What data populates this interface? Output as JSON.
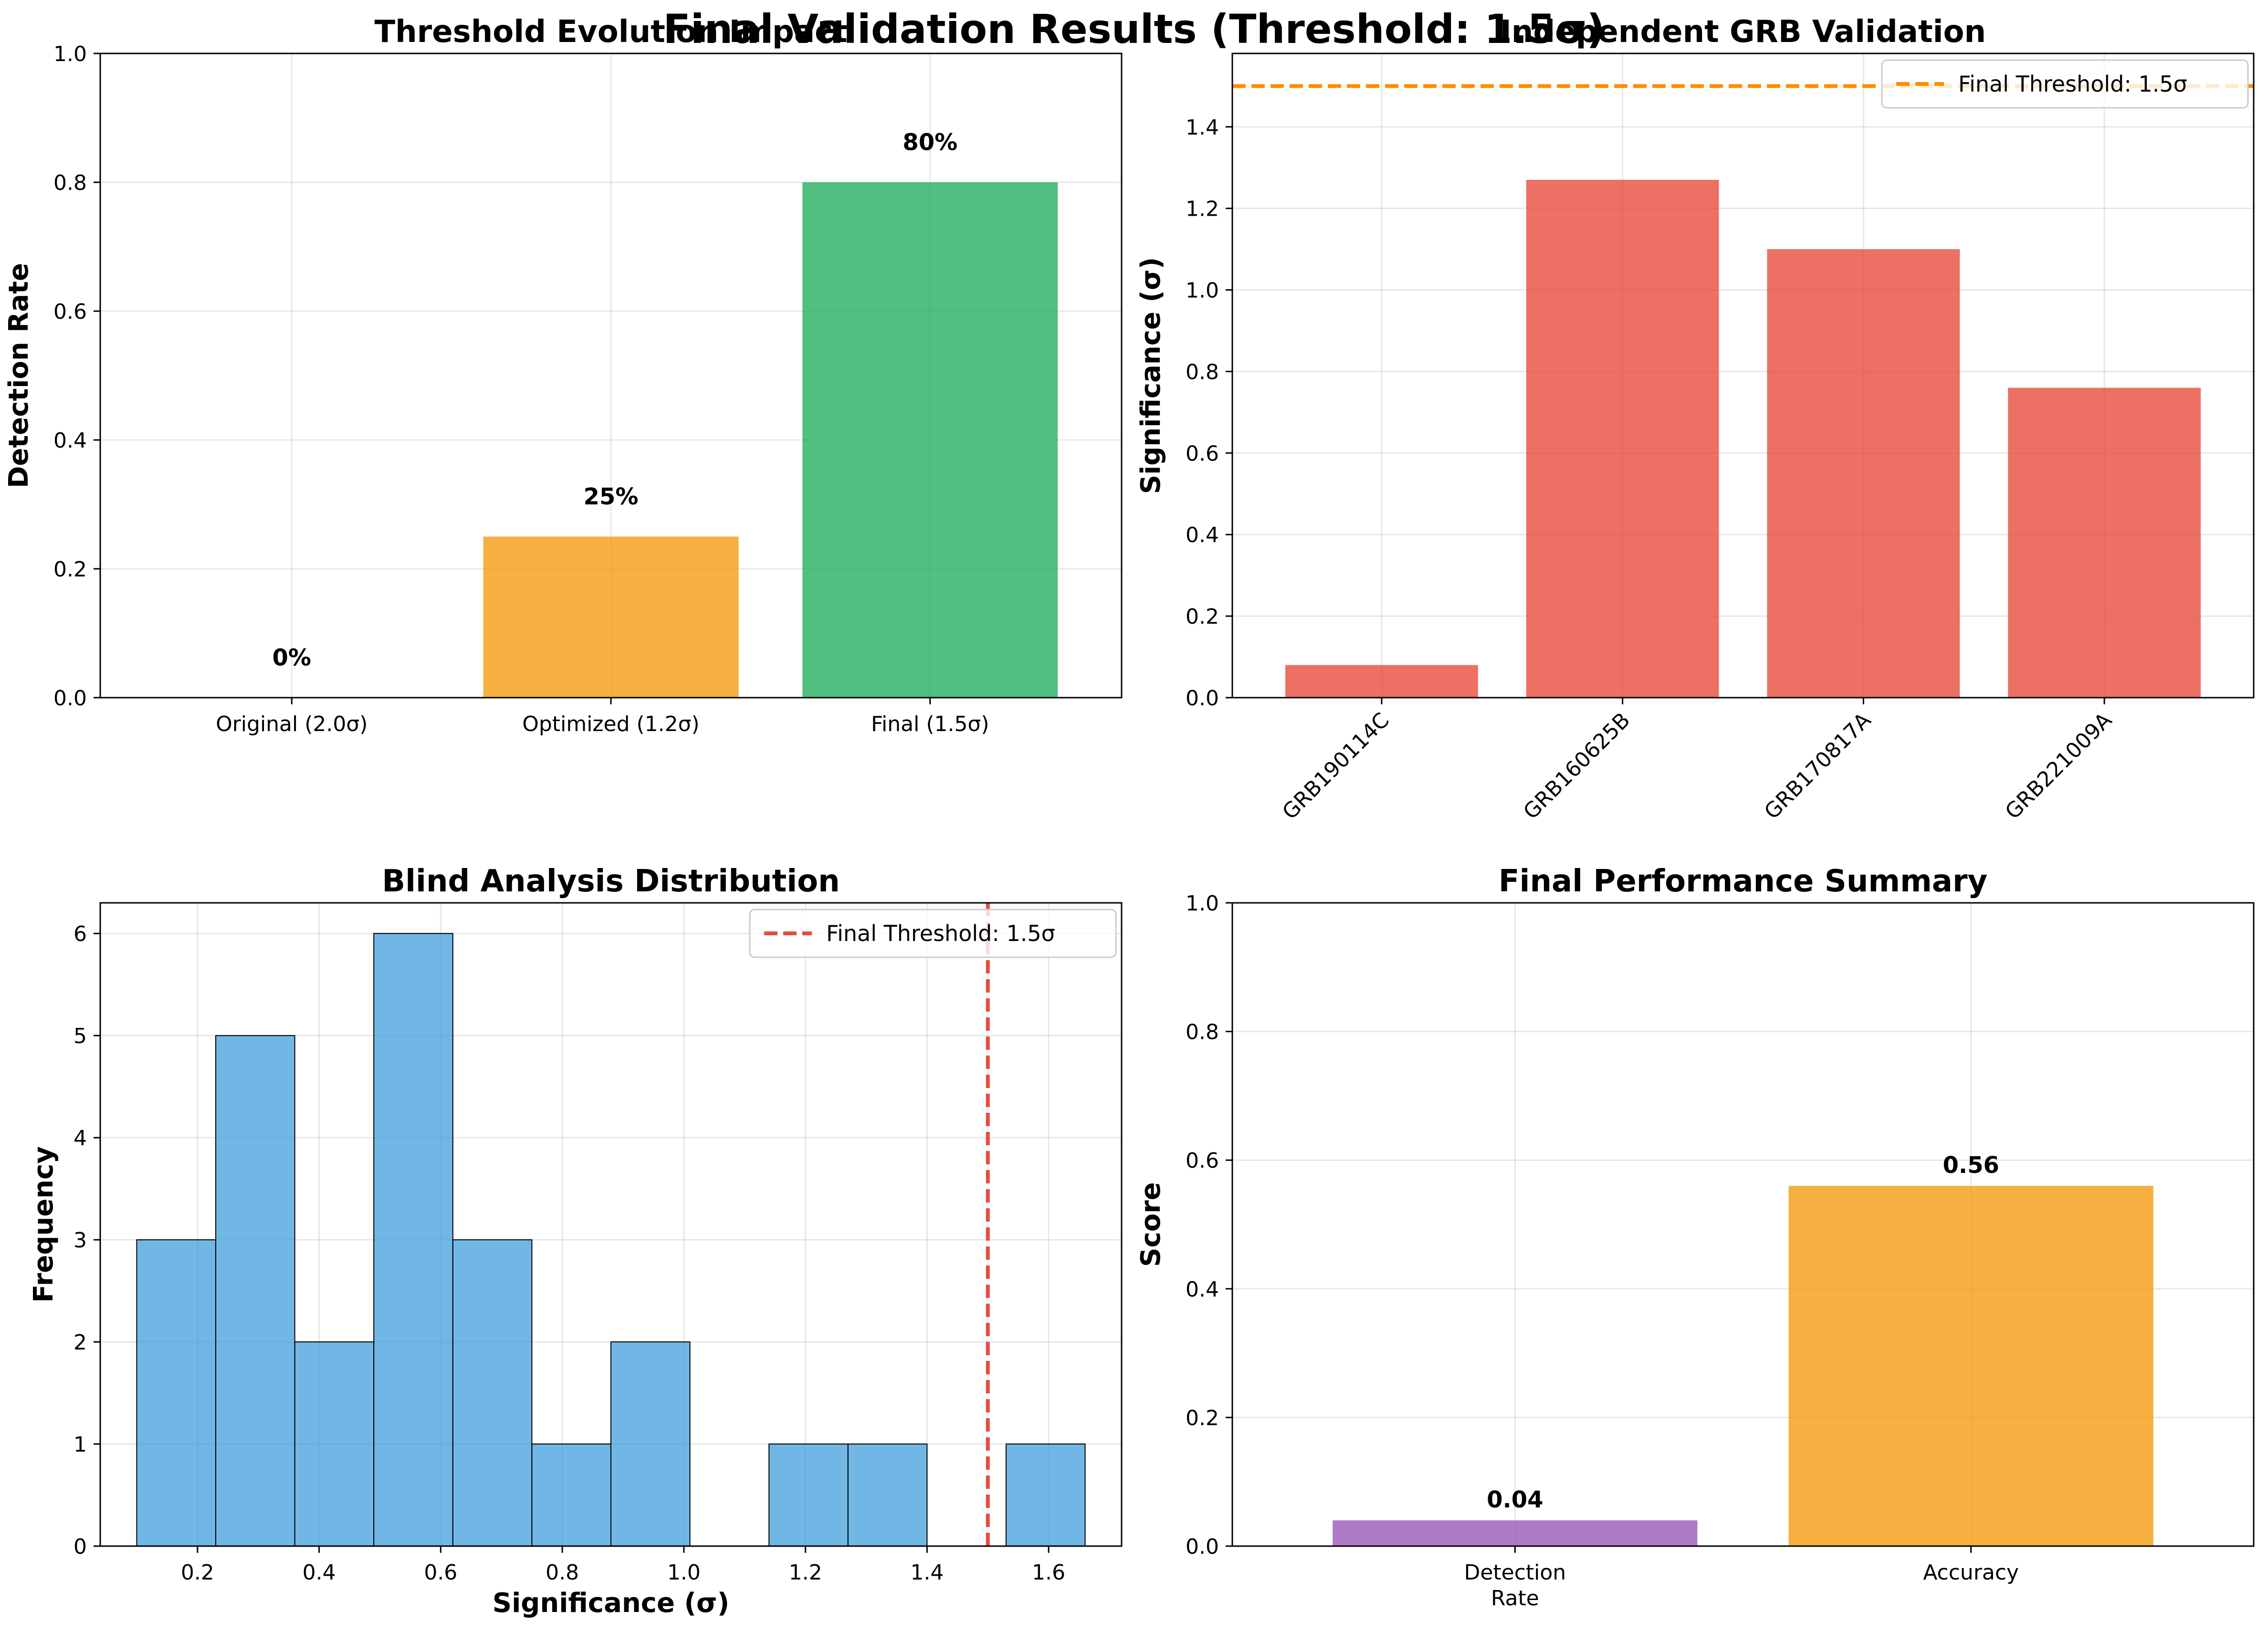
{
  "figure": {
    "title": "Final Validation Results (Threshold: 1.5σ)"
  },
  "colors": {
    "red": "#e74c3c",
    "orange": "#f39c12",
    "green": "#27ae60",
    "purple": "#9b59b6",
    "blue": "#3498db",
    "threshold_orange": "#ff8c00"
  },
  "chart_data": [
    {
      "type": "bar",
      "title": "Threshold Evolution Impact",
      "xlabel": "",
      "ylabel": "Detection Rate",
      "categories": [
        "Original (2.0σ)",
        "Optimized (1.2σ)",
        "Final (1.5σ)"
      ],
      "values": [
        0.0,
        0.25,
        0.8
      ],
      "data_labels": [
        "0%",
        "25%",
        "80%"
      ],
      "colors": [
        "#e74c3c",
        "#f39c12",
        "#27ae60"
      ],
      "ylim": [
        0,
        1.0
      ],
      "yticks": [
        "0.0",
        "0.2",
        "0.4",
        "0.6",
        "0.8",
        "1.0"
      ],
      "grid": true
    },
    {
      "type": "bar",
      "title": "Independent GRB Validation",
      "xlabel": "",
      "ylabel": "Significance (σ)",
      "categories": [
        "GRB190114C",
        "GRB160625B",
        "GRB170817A",
        "GRB221009A"
      ],
      "values": [
        0.08,
        1.27,
        1.1,
        0.76
      ],
      "colors": [
        "#e74c3c",
        "#e74c3c",
        "#e74c3c",
        "#e74c3c"
      ],
      "ylim": [
        0,
        1.58
      ],
      "yticks": [
        "0.0",
        "0.2",
        "0.4",
        "0.6",
        "0.8",
        "1.0",
        "1.2",
        "1.4"
      ],
      "threshold": {
        "value": 1.5,
        "label": "Final Threshold: 1.5σ",
        "color": "#ff8c00"
      },
      "legend": "top-right",
      "grid": true
    },
    {
      "type": "histogram",
      "title": "Blind Analysis Distribution",
      "xlabel": "Significance (σ)",
      "ylabel": "Frequency",
      "bin_edges": [
        0.1,
        0.23,
        0.36,
        0.49,
        0.62,
        0.75,
        0.88,
        1.01,
        1.14,
        1.27,
        1.4,
        1.53,
        1.66
      ],
      "counts": [
        3,
        5,
        2,
        6,
        3,
        1,
        2,
        0,
        1,
        1,
        0,
        1
      ],
      "xlim": [
        0.04,
        1.72
      ],
      "ylim": [
        0,
        6.3
      ],
      "xticks": [
        "0.2",
        "0.4",
        "0.6",
        "0.8",
        "1.0",
        "1.2",
        "1.4",
        "1.6"
      ],
      "yticks": [
        "0",
        "1",
        "2",
        "3",
        "4",
        "5",
        "6"
      ],
      "threshold": {
        "value": 1.5,
        "label": "Final Threshold: 1.5σ",
        "color": "#e74c3c"
      },
      "legend": "top-right",
      "grid": true
    },
    {
      "type": "bar",
      "title": "Final Performance Summary",
      "xlabel": "",
      "ylabel": "Score",
      "categories": [
        "Detection\nRate",
        "Accuracy"
      ],
      "values": [
        0.04,
        0.56
      ],
      "data_labels": [
        "0.04",
        "0.56"
      ],
      "colors": [
        "#9b59b6",
        "#f39c12"
      ],
      "ylim": [
        0,
        1.0
      ],
      "yticks": [
        "0.0",
        "0.2",
        "0.4",
        "0.6",
        "0.8",
        "1.0"
      ],
      "grid": true
    }
  ]
}
